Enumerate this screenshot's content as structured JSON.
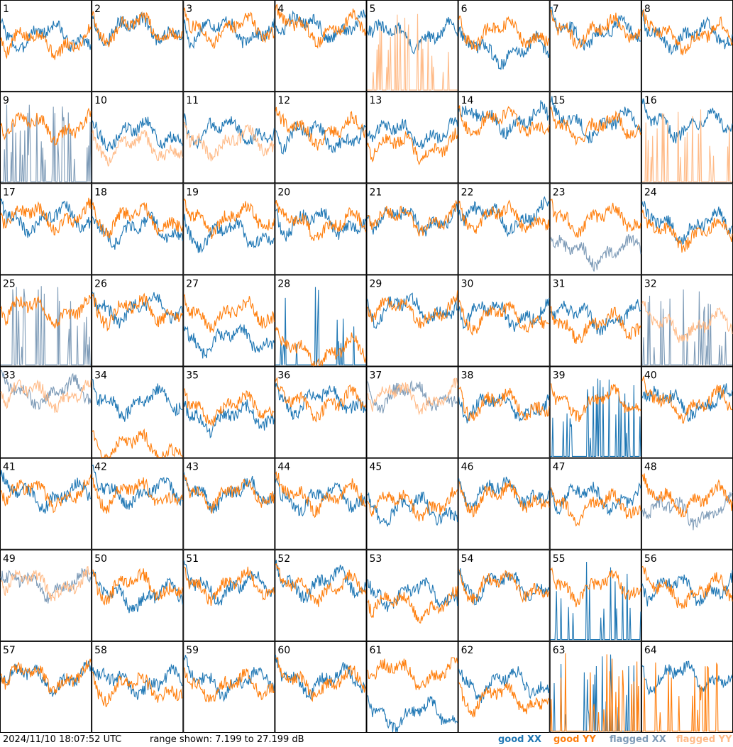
{
  "chart_data": {
    "type": "line",
    "layout": "8x8 small multiples",
    "panels": [
      {
        "label": "1",
        "xx": "good",
        "yy": "good",
        "xx_level": 0.62,
        "yy_level": 0.55
      },
      {
        "label": "2",
        "xx": "good",
        "yy": "good",
        "xx_level": 0.7,
        "yy_level": 0.7
      },
      {
        "label": "3",
        "xx": "good",
        "yy": "good",
        "xx_level": 0.68,
        "yy_level": 0.7
      },
      {
        "label": "4",
        "xx": "good",
        "yy": "good",
        "xx_level": 0.72,
        "yy_level": 0.7
      },
      {
        "label": "5",
        "xx": "good",
        "yy": "flagged",
        "xx_level": 0.62,
        "yy_level": 0.05
      },
      {
        "label": "6",
        "xx": "good",
        "yy": "good",
        "xx_level": 0.45,
        "yy_level": 0.65
      },
      {
        "label": "7",
        "xx": "good",
        "yy": "good",
        "xx_level": 0.66,
        "yy_level": 0.68
      },
      {
        "label": "8",
        "xx": "good",
        "yy": "good",
        "xx_level": 0.62,
        "yy_level": 0.62
      },
      {
        "label": "9",
        "xx": "flagged",
        "yy": "good",
        "xx_level": 0.05,
        "yy_level": 0.62
      },
      {
        "label": "10",
        "xx": "good",
        "yy": "flagged",
        "xx_level": 0.55,
        "yy_level": 0.4
      },
      {
        "label": "11",
        "xx": "good",
        "yy": "flagged",
        "xx_level": 0.58,
        "yy_level": 0.45
      },
      {
        "label": "12",
        "xx": "good",
        "yy": "good",
        "xx_level": 0.52,
        "yy_level": 0.58
      },
      {
        "label": "13",
        "xx": "good",
        "yy": "good",
        "xx_level": 0.55,
        "yy_level": 0.4
      },
      {
        "label": "14",
        "xx": "good",
        "yy": "good",
        "xx_level": 0.7,
        "yy_level": 0.68
      },
      {
        "label": "15",
        "xx": "good",
        "yy": "good",
        "xx_level": 0.66,
        "yy_level": 0.62
      },
      {
        "label": "16",
        "xx": "good",
        "yy": "flagged",
        "xx_level": 0.66,
        "yy_level": 0.05
      },
      {
        "label": "17",
        "xx": "good",
        "yy": "good",
        "xx_level": 0.62,
        "yy_level": 0.64
      },
      {
        "label": "18",
        "xx": "good",
        "yy": "good",
        "xx_level": 0.5,
        "yy_level": 0.62
      },
      {
        "label": "19",
        "xx": "good",
        "yy": "good",
        "xx_level": 0.45,
        "yy_level": 0.62
      },
      {
        "label": "20",
        "xx": "good",
        "yy": "good",
        "xx_level": 0.58,
        "yy_level": 0.56
      },
      {
        "label": "21",
        "xx": "good",
        "yy": "good",
        "xx_level": 0.62,
        "yy_level": 0.62
      },
      {
        "label": "22",
        "xx": "good",
        "yy": "good",
        "xx_level": 0.64,
        "yy_level": 0.64
      },
      {
        "label": "23",
        "xx": "flagged",
        "yy": "good",
        "xx_level": 0.25,
        "yy_level": 0.62
      },
      {
        "label": "24",
        "xx": "good",
        "yy": "good",
        "xx_level": 0.55,
        "yy_level": 0.45
      },
      {
        "label": "25",
        "xx": "flagged",
        "yy": "good",
        "xx_level": 0.05,
        "yy_level": 0.62
      },
      {
        "label": "26",
        "xx": "good",
        "yy": "good",
        "xx_level": 0.64,
        "yy_level": 0.62
      },
      {
        "label": "27",
        "xx": "good",
        "yy": "good",
        "xx_level": 0.3,
        "yy_level": 0.58
      },
      {
        "label": "28",
        "xx": "good",
        "yy": "good",
        "xx_level": 0.08,
        "yy_level": 0.15
      },
      {
        "label": "29",
        "xx": "good",
        "yy": "good",
        "xx_level": 0.64,
        "yy_level": 0.62
      },
      {
        "label": "30",
        "xx": "good",
        "yy": "good",
        "xx_level": 0.58,
        "yy_level": 0.55
      },
      {
        "label": "31",
        "xx": "good",
        "yy": "good",
        "xx_level": 0.55,
        "yy_level": 0.45
      },
      {
        "label": "32",
        "xx": "flagged",
        "yy": "flagged",
        "xx_level": 0.05,
        "yy_level": 0.45
      },
      {
        "label": "33",
        "xx": "flagged",
        "yy": "flagged",
        "xx_level": 0.72,
        "yy_level": 0.7
      },
      {
        "label": "34",
        "xx": "good",
        "yy": "good",
        "xx_level": 0.62,
        "yy_level": 0.12
      },
      {
        "label": "35",
        "xx": "good",
        "yy": "good",
        "xx_level": 0.45,
        "yy_level": 0.56
      },
      {
        "label": "36",
        "xx": "good",
        "yy": "good",
        "xx_level": 0.64,
        "yy_level": 0.6
      },
      {
        "label": "37",
        "xx": "flagged",
        "yy": "flagged",
        "xx_level": 0.7,
        "yy_level": 0.68
      },
      {
        "label": "38",
        "xx": "good",
        "yy": "good",
        "xx_level": 0.58,
        "yy_level": 0.6
      },
      {
        "label": "39",
        "xx": "good",
        "yy": "good",
        "xx_level": 0.05,
        "yy_level": 0.62
      },
      {
        "label": "40",
        "xx": "good",
        "yy": "good",
        "xx_level": 0.62,
        "yy_level": 0.6
      },
      {
        "label": "41",
        "xx": "good",
        "yy": "good",
        "xx_level": 0.6,
        "yy_level": 0.62
      },
      {
        "label": "42",
        "xx": "good",
        "yy": "good",
        "xx_level": 0.64,
        "yy_level": 0.62
      },
      {
        "label": "43",
        "xx": "good",
        "yy": "good",
        "xx_level": 0.62,
        "yy_level": 0.62
      },
      {
        "label": "44",
        "xx": "good",
        "yy": "good",
        "xx_level": 0.58,
        "yy_level": 0.58
      },
      {
        "label": "45",
        "xx": "good",
        "yy": "good",
        "xx_level": 0.45,
        "yy_level": 0.5
      },
      {
        "label": "46",
        "xx": "good",
        "yy": "good",
        "xx_level": 0.64,
        "yy_level": 0.58
      },
      {
        "label": "47",
        "xx": "good",
        "yy": "good",
        "xx_level": 0.58,
        "yy_level": 0.48
      },
      {
        "label": "48",
        "xx": "flagged",
        "yy": "good",
        "xx_level": 0.42,
        "yy_level": 0.55
      },
      {
        "label": "49",
        "xx": "flagged",
        "yy": "flagged",
        "xx_level": 0.62,
        "yy_level": 0.64
      },
      {
        "label": "50",
        "xx": "good",
        "yy": "good",
        "xx_level": 0.5,
        "yy_level": 0.62
      },
      {
        "label": "51",
        "xx": "good",
        "yy": "good",
        "xx_level": 0.6,
        "yy_level": 0.62
      },
      {
        "label": "52",
        "xx": "good",
        "yy": "good",
        "xx_level": 0.64,
        "yy_level": 0.58
      },
      {
        "label": "53",
        "xx": "good",
        "yy": "good",
        "xx_level": 0.52,
        "yy_level": 0.4
      },
      {
        "label": "54",
        "xx": "good",
        "yy": "good",
        "xx_level": 0.62,
        "yy_level": 0.62
      },
      {
        "label": "55",
        "xx": "good",
        "yy": "good",
        "xx_level": 0.1,
        "yy_level": 0.6
      },
      {
        "label": "56",
        "xx": "good",
        "yy": "good",
        "xx_level": 0.58,
        "yy_level": 0.55
      },
      {
        "label": "57",
        "xx": "good",
        "yy": "good",
        "xx_level": 0.6,
        "yy_level": 0.62
      },
      {
        "label": "58",
        "xx": "good",
        "yy": "good",
        "xx_level": 0.55,
        "yy_level": 0.5
      },
      {
        "label": "59",
        "xx": "good",
        "yy": "good",
        "xx_level": 0.56,
        "yy_level": 0.52
      },
      {
        "label": "60",
        "xx": "good",
        "yy": "good",
        "xx_level": 0.58,
        "yy_level": 0.55
      },
      {
        "label": "61",
        "xx": "good",
        "yy": "good",
        "xx_level": 0.2,
        "yy_level": 0.66
      },
      {
        "label": "62",
        "xx": "good",
        "yy": "good",
        "xx_level": 0.55,
        "yy_level": 0.38
      },
      {
        "label": "63",
        "xx": "good",
        "yy": "good",
        "xx_level": 0.05,
        "yy_level": 0.05
      },
      {
        "label": "64",
        "xx": "good",
        "yy": "good",
        "xx_level": 0.62,
        "yy_level": 0.05
      }
    ]
  },
  "footer": {
    "timestamp": "2024/11/10 18:07:52 UTC",
    "range": "range shown: 7.199 to 27.199 dB"
  },
  "legend": [
    {
      "key": "good_xx",
      "label": "good XX",
      "color": "#1f77b4"
    },
    {
      "key": "good_yy",
      "label": "good YY",
      "color": "#ff7f0e"
    },
    {
      "key": "flagged_xx",
      "label": "flagged XX",
      "color": "#7f9cb8"
    },
    {
      "key": "flagged_yy",
      "label": "flagged YY",
      "color": "#ffbb88"
    }
  ],
  "colors": {
    "good_xx": "#1f77b4",
    "good_yy": "#ff7f0e",
    "flagged_xx": "#7f9cb8",
    "flagged_yy": "#ffbb88",
    "grid": "#000000"
  }
}
